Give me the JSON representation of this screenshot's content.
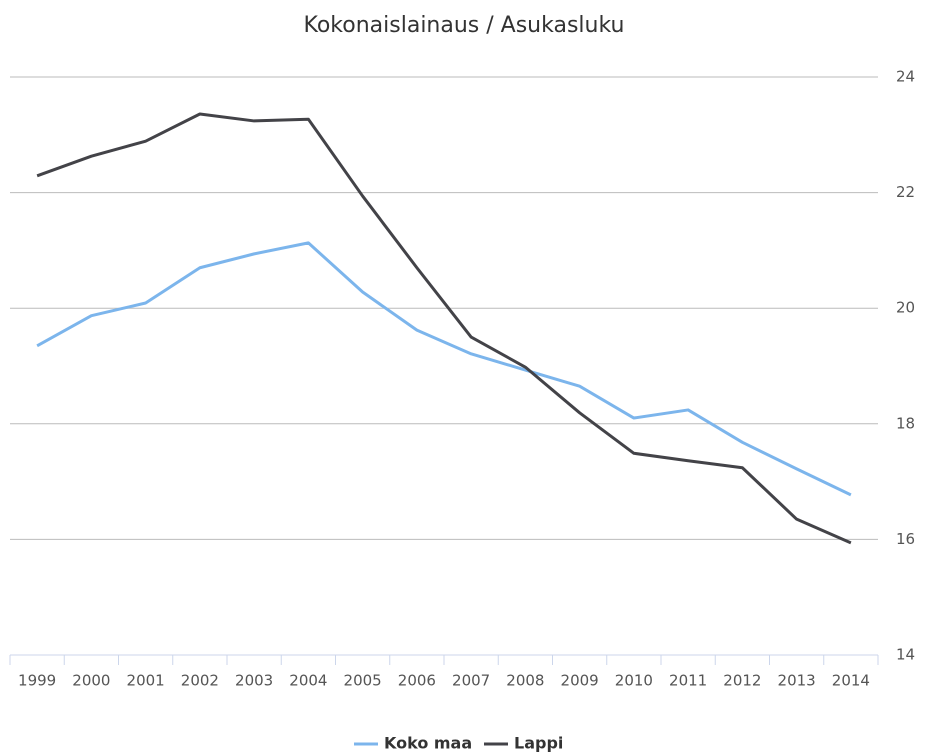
{
  "chart_data": {
    "type": "line",
    "title": "Kokonaislainaus / Asukasluku",
    "categories": [
      "1999",
      "2000",
      "2001",
      "2002",
      "2003",
      "2004",
      "2005",
      "2006",
      "2007",
      "2008",
      "2009",
      "2010",
      "2011",
      "2012",
      "2013",
      "2014"
    ],
    "series": [
      {
        "name": "Koko maa",
        "color": "#7cb5ec",
        "values": [
          19.35,
          19.87,
          20.09,
          20.7,
          20.94,
          21.13,
          20.28,
          19.62,
          19.21,
          18.93,
          18.65,
          18.1,
          18.24,
          17.68,
          17.22,
          16.77
        ]
      },
      {
        "name": "Lappi",
        "color": "#434348",
        "values": [
          22.29,
          22.63,
          22.89,
          23.36,
          23.24,
          23.27,
          21.94,
          20.7,
          19.5,
          18.98,
          18.19,
          17.49,
          17.36,
          17.24,
          16.35,
          15.94
        ]
      }
    ],
    "ylim": [
      14,
      24
    ],
    "yticks": [
      14,
      16,
      18,
      20,
      22,
      24
    ],
    "grid": true,
    "legend": "bottom"
  }
}
